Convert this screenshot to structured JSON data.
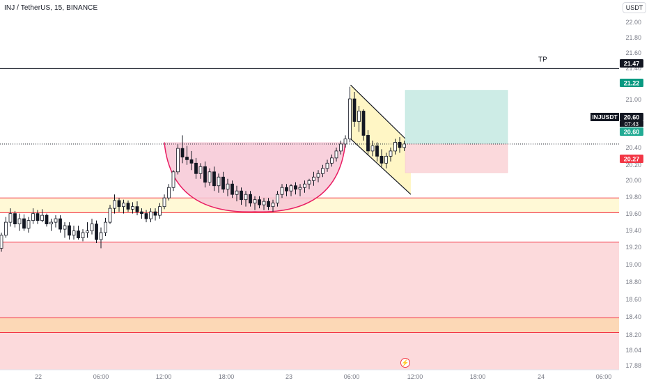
{
  "header": {
    "symbol_title": "INJ / TetherUS, 15, BINANCE",
    "currency_button": "USDT"
  },
  "annotations": {
    "tp_label": "TP",
    "symbol_tag": "INJUSDT",
    "countdown": "07:43",
    "lightning_glyph": "⚡"
  },
  "chart_data": {
    "type": "candlestick",
    "x_tick_labels": [
      "22",
      "06:00",
      "12:00",
      "18:00",
      "23",
      "06:00",
      "12:00",
      "18:00",
      "24",
      "06:00"
    ],
    "y_tick_labels": [
      "22.00",
      "21.80",
      "21.60",
      "21.40",
      "21.00",
      "20.40",
      "20.20",
      "20.00",
      "19.80",
      "19.60",
      "19.40",
      "19.20",
      "19.00",
      "18.80",
      "18.60",
      "18.40",
      "18.20",
      "18.04",
      "17.88"
    ],
    "ylim": [
      17.86,
      22.18
    ],
    "price_badges": [
      {
        "value": "21.47",
        "role": "tp_line",
        "color": "#131722"
      },
      {
        "value": "21.22",
        "role": "target",
        "color": "#089981"
      },
      {
        "value": "20.60",
        "role": "last_price",
        "color": "#131722"
      },
      {
        "value": "20.60",
        "role": "entry",
        "color": "#22ab94"
      },
      {
        "value": "20.27",
        "role": "stop",
        "color": "#f23645"
      }
    ],
    "horizontal_lines": [
      {
        "price": 21.47,
        "style": "solid",
        "color": "#131722"
      },
      {
        "price": 20.6,
        "style": "dotted",
        "color": "#131722"
      }
    ],
    "zones": [
      {
        "top": 19.98,
        "bottom": 19.81,
        "fill": "#fff9d6",
        "border": "#f23645"
      },
      {
        "top": 19.47,
        "bottom": 17.86,
        "fill": "#fcdadc",
        "border": "#f23645"
      },
      {
        "top": 18.6,
        "bottom": 18.43,
        "fill": "#fcd8b6",
        "border": "#f23645"
      }
    ],
    "position": {
      "entry": 20.6,
      "target": 21.22,
      "stop": 20.27,
      "profit_color": "#cdece6",
      "loss_color": "#fbd9dc"
    },
    "series": [
      {
        "name": "INJUSDT",
        "candles": [
          [
            19.4,
            19.58,
            19.36,
            19.55
          ],
          [
            19.55,
            19.76,
            19.52,
            19.7
          ],
          [
            19.7,
            19.86,
            19.65,
            19.8
          ],
          [
            19.8,
            19.83,
            19.64,
            19.68
          ],
          [
            19.68,
            19.8,
            19.6,
            19.74
          ],
          [
            19.74,
            19.79,
            19.6,
            19.63
          ],
          [
            19.63,
            19.76,
            19.58,
            19.72
          ],
          [
            19.72,
            19.86,
            19.68,
            19.8
          ],
          [
            19.8,
            19.84,
            19.68,
            19.72
          ],
          [
            19.72,
            19.85,
            19.7,
            19.78
          ],
          [
            19.78,
            19.8,
            19.65,
            19.68
          ],
          [
            19.68,
            19.74,
            19.6,
            19.7
          ],
          [
            19.7,
            19.78,
            19.64,
            19.74
          ],
          [
            19.74,
            19.78,
            19.58,
            19.62
          ],
          [
            19.62,
            19.7,
            19.52,
            19.66
          ],
          [
            19.66,
            19.7,
            19.5,
            19.55
          ],
          [
            19.55,
            19.66,
            19.5,
            19.6
          ],
          [
            19.6,
            19.66,
            19.5,
            19.52
          ],
          [
            19.52,
            19.62,
            19.48,
            19.58
          ],
          [
            19.58,
            19.7,
            19.52,
            19.6
          ],
          [
            19.6,
            19.74,
            19.56,
            19.68
          ],
          [
            19.68,
            19.72,
            19.46,
            19.5
          ],
          [
            19.5,
            19.64,
            19.4,
            19.58
          ],
          [
            19.58,
            19.75,
            19.54,
            19.7
          ],
          [
            19.7,
            19.9,
            19.68,
            19.86
          ],
          [
            19.86,
            20.02,
            19.8,
            19.95
          ],
          [
            19.95,
            19.98,
            19.82,
            19.88
          ],
          [
            19.88,
            19.96,
            19.8,
            19.92
          ],
          [
            19.92,
            19.95,
            19.82,
            19.85
          ],
          [
            19.85,
            19.93,
            19.8,
            19.88
          ],
          [
            19.88,
            19.94,
            19.78,
            19.82
          ],
          [
            19.82,
            19.86,
            19.74,
            19.8
          ],
          [
            19.8,
            19.84,
            19.7,
            19.74
          ],
          [
            19.74,
            19.86,
            19.7,
            19.82
          ],
          [
            19.82,
            19.86,
            19.72,
            19.78
          ],
          [
            19.78,
            19.92,
            19.74,
            19.88
          ],
          [
            19.88,
            20.02,
            19.85,
            19.98
          ],
          [
            19.98,
            20.14,
            19.95,
            20.1
          ],
          [
            20.1,
            20.3,
            20.06,
            20.28
          ],
          [
            20.28,
            20.6,
            20.25,
            20.55
          ],
          [
            20.55,
            20.7,
            20.38,
            20.45
          ],
          [
            20.45,
            20.58,
            20.36,
            20.42
          ],
          [
            20.42,
            20.52,
            20.3,
            20.38
          ],
          [
            20.38,
            20.44,
            20.2,
            20.26
          ],
          [
            20.26,
            20.38,
            20.2,
            20.34
          ],
          [
            20.34,
            20.4,
            20.1,
            20.16
          ],
          [
            20.16,
            20.32,
            20.12,
            20.28
          ],
          [
            20.28,
            20.34,
            20.06,
            20.12
          ],
          [
            20.12,
            20.26,
            20.04,
            20.22
          ],
          [
            20.22,
            20.28,
            20.04,
            20.08
          ],
          [
            20.08,
            20.2,
            20.0,
            20.14
          ],
          [
            20.14,
            20.18,
            19.98,
            20.02
          ],
          [
            20.02,
            20.12,
            19.94,
            20.06
          ],
          [
            20.06,
            20.1,
            19.9,
            19.96
          ],
          [
            19.96,
            20.06,
            19.88,
            20.02
          ],
          [
            20.02,
            20.06,
            19.88,
            19.92
          ],
          [
            19.92,
            20.0,
            19.84,
            19.96
          ],
          [
            19.96,
            20.0,
            19.86,
            19.9
          ],
          [
            19.9,
            19.98,
            19.84,
            19.94
          ],
          [
            19.94,
            19.98,
            19.84,
            19.88
          ],
          [
            19.88,
            19.96,
            19.82,
            19.92
          ],
          [
            19.92,
            20.06,
            19.88,
            20.02
          ],
          [
            20.02,
            20.14,
            19.98,
            20.1
          ],
          [
            20.1,
            20.14,
            20.0,
            20.06
          ],
          [
            20.06,
            20.14,
            20.0,
            20.12
          ],
          [
            20.12,
            20.16,
            20.02,
            20.08
          ],
          [
            20.08,
            20.14,
            20.0,
            20.1
          ],
          [
            20.1,
            20.18,
            20.04,
            20.14
          ],
          [
            20.14,
            20.2,
            20.08,
            20.18
          ],
          [
            20.18,
            20.28,
            20.12,
            20.22
          ],
          [
            20.22,
            20.3,
            20.16,
            20.26
          ],
          [
            20.26,
            20.36,
            20.22,
            20.32
          ],
          [
            20.32,
            20.42,
            20.28,
            20.38
          ],
          [
            20.38,
            20.48,
            20.34,
            20.44
          ],
          [
            20.44,
            20.56,
            20.4,
            20.52
          ],
          [
            20.52,
            20.64,
            20.48,
            20.6
          ],
          [
            20.6,
            20.7,
            20.56,
            20.66
          ],
          [
            20.66,
            21.26,
            20.62,
            21.12
          ],
          [
            21.12,
            21.2,
            20.8,
            20.86
          ],
          [
            20.86,
            21.04,
            20.74,
            20.98
          ],
          [
            20.98,
            21.0,
            20.64,
            20.7
          ],
          [
            20.7,
            20.76,
            20.48,
            20.52
          ],
          [
            20.52,
            20.64,
            20.46,
            20.58
          ],
          [
            20.58,
            20.62,
            20.4,
            20.46
          ],
          [
            20.46,
            20.54,
            20.34,
            20.38
          ],
          [
            20.38,
            20.5,
            20.32,
            20.46
          ],
          [
            20.46,
            20.56,
            20.4,
            20.52
          ],
          [
            20.52,
            20.66,
            20.48,
            20.62
          ],
          [
            20.62,
            20.68,
            20.5,
            20.56
          ],
          [
            20.56,
            20.64,
            20.52,
            20.6
          ]
        ]
      }
    ]
  }
}
